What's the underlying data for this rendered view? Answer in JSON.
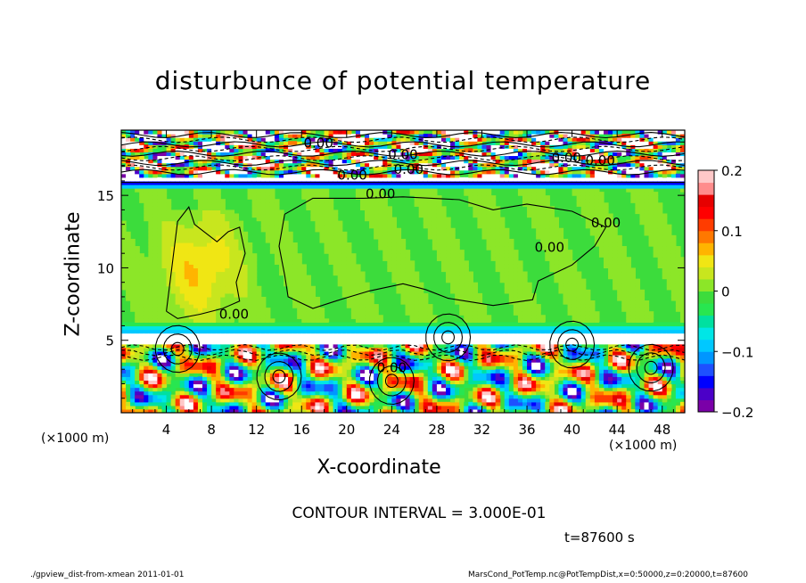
{
  "chart_data": {
    "type": "heatmap",
    "title": "disturbunce of potential temperature",
    "xlabel": "X-coordinate",
    "ylabel": "Z-coordinate",
    "x_unit": "(×1000 m)",
    "xlim": [
      0,
      50
    ],
    "ylim": [
      0,
      19.5
    ],
    "x_ticks": [
      4,
      8,
      12,
      16,
      20,
      24,
      28,
      32,
      36,
      40,
      44,
      48
    ],
    "y_ticks": [
      5,
      10,
      15
    ],
    "colorbar": {
      "range": [
        -0.2,
        0.2
      ],
      "tick_labels": [
        "0.2",
        "0.1",
        "0",
        "−0.1",
        "−0.2"
      ],
      "tick_values": [
        0.2,
        0.1,
        0,
        -0.1,
        -0.2
      ],
      "colors": [
        "#7a00a8",
        "#4b00c8",
        "#0000ff",
        "#1e50ff",
        "#0096ff",
        "#00c8ff",
        "#00e6e6",
        "#00e0a0",
        "#28e650",
        "#3cdc3c",
        "#8ce628",
        "#c8e61e",
        "#f0e614",
        "#ffb400",
        "#ff7800",
        "#ff3c00",
        "#ff0000",
        "#e60000",
        "#ff8c8c",
        "#ffc8c8"
      ]
    },
    "contour_labels": [
      "0.00",
      "0.00",
      "0.00",
      "0.00",
      "0.00",
      "0.00",
      "0.00",
      "0.00",
      "0.00",
      "0.00",
      "0.00"
    ],
    "contour_interval": "CONTOUR INTERVAL = 3.000E-01",
    "time": "t=87600 s"
  },
  "footer": {
    "left": "./gpview_dist-from-xmean   2011-01-01",
    "right": "MarsCond_PotTemp.nc@PotTempDist,x=0:50000,z=0:20000,t=87600"
  }
}
